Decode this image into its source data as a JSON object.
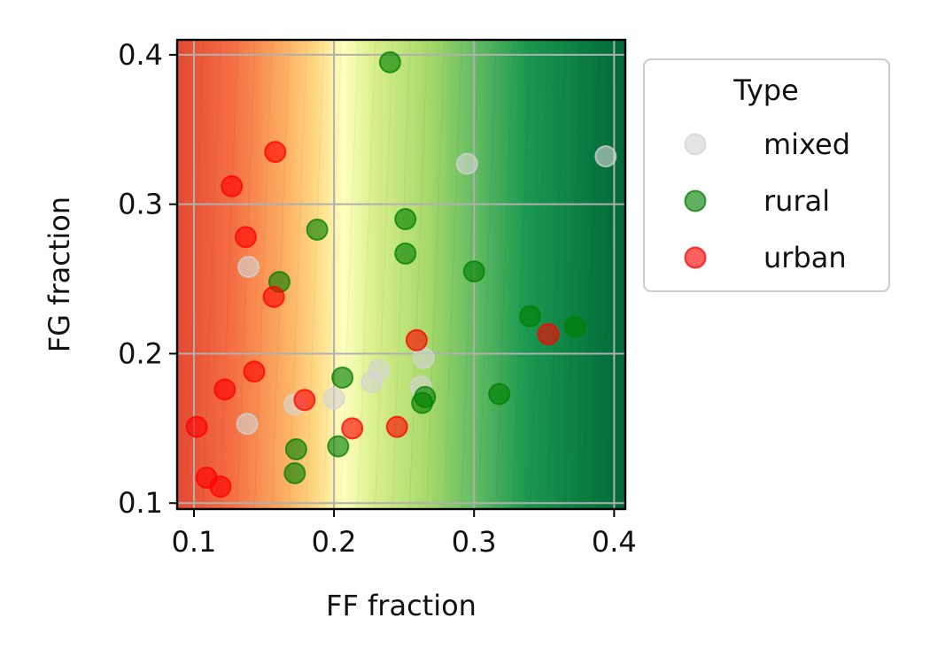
{
  "chart_data": {
    "type": "scatter",
    "title": "",
    "xlabel": "FF fraction",
    "ylabel": "FG fraction",
    "xlim": [
      0.088,
      0.408
    ],
    "ylim": [
      0.096,
      0.41
    ],
    "x_ticks": [
      0.1,
      0.2,
      0.3,
      0.4
    ],
    "y_ticks": [
      0.1,
      0.2,
      0.3,
      0.4
    ],
    "x_tick_labels": [
      "0.1",
      "0.2",
      "0.3",
      "0.4"
    ],
    "y_tick_labels": [
      "0.1",
      "0.2",
      "0.3",
      "0.4"
    ],
    "grid": true,
    "background": {
      "type": "filled-contour",
      "colormap": "RdYlGn",
      "description_of_trend": "red at low FF fraction, yellow near FF 0.2, dark green at high FF fraction"
    },
    "legend": {
      "title": "Type",
      "placement": "outside-right",
      "entries": [
        "mixed",
        "rural",
        "urban"
      ]
    },
    "series": [
      {
        "name": "mixed",
        "color": "#d3d3d3",
        "points": [
          {
            "x": 0.138,
            "y": 0.153
          },
          {
            "x": 0.139,
            "y": 0.258
          },
          {
            "x": 0.172,
            "y": 0.166
          },
          {
            "x": 0.2,
            "y": 0.17
          },
          {
            "x": 0.227,
            "y": 0.181
          },
          {
            "x": 0.232,
            "y": 0.189
          },
          {
            "x": 0.262,
            "y": 0.178
          },
          {
            "x": 0.264,
            "y": 0.197
          },
          {
            "x": 0.295,
            "y": 0.327
          },
          {
            "x": 0.394,
            "y": 0.332
          }
        ]
      },
      {
        "name": "rural",
        "color": "#008000",
        "points": [
          {
            "x": 0.24,
            "y": 0.395
          },
          {
            "x": 0.188,
            "y": 0.283
          },
          {
            "x": 0.251,
            "y": 0.29
          },
          {
            "x": 0.251,
            "y": 0.267
          },
          {
            "x": 0.161,
            "y": 0.248
          },
          {
            "x": 0.3,
            "y": 0.255
          },
          {
            "x": 0.34,
            "y": 0.225
          },
          {
            "x": 0.372,
            "y": 0.218
          },
          {
            "x": 0.206,
            "y": 0.184
          },
          {
            "x": 0.265,
            "y": 0.171
          },
          {
            "x": 0.263,
            "y": 0.167
          },
          {
            "x": 0.318,
            "y": 0.173
          },
          {
            "x": 0.173,
            "y": 0.136
          },
          {
            "x": 0.203,
            "y": 0.138
          },
          {
            "x": 0.172,
            "y": 0.12
          }
        ]
      },
      {
        "name": "urban",
        "color": "#ff0000",
        "points": [
          {
            "x": 0.158,
            "y": 0.335
          },
          {
            "x": 0.127,
            "y": 0.312
          },
          {
            "x": 0.137,
            "y": 0.278
          },
          {
            "x": 0.157,
            "y": 0.238
          },
          {
            "x": 0.259,
            "y": 0.209
          },
          {
            "x": 0.353,
            "y": 0.213
          },
          {
            "x": 0.143,
            "y": 0.188
          },
          {
            "x": 0.122,
            "y": 0.176
          },
          {
            "x": 0.179,
            "y": 0.169
          },
          {
            "x": 0.102,
            "y": 0.151
          },
          {
            "x": 0.213,
            "y": 0.15
          },
          {
            "x": 0.245,
            "y": 0.151
          },
          {
            "x": 0.109,
            "y": 0.117
          },
          {
            "x": 0.119,
            "y": 0.111
          }
        ]
      }
    ]
  }
}
